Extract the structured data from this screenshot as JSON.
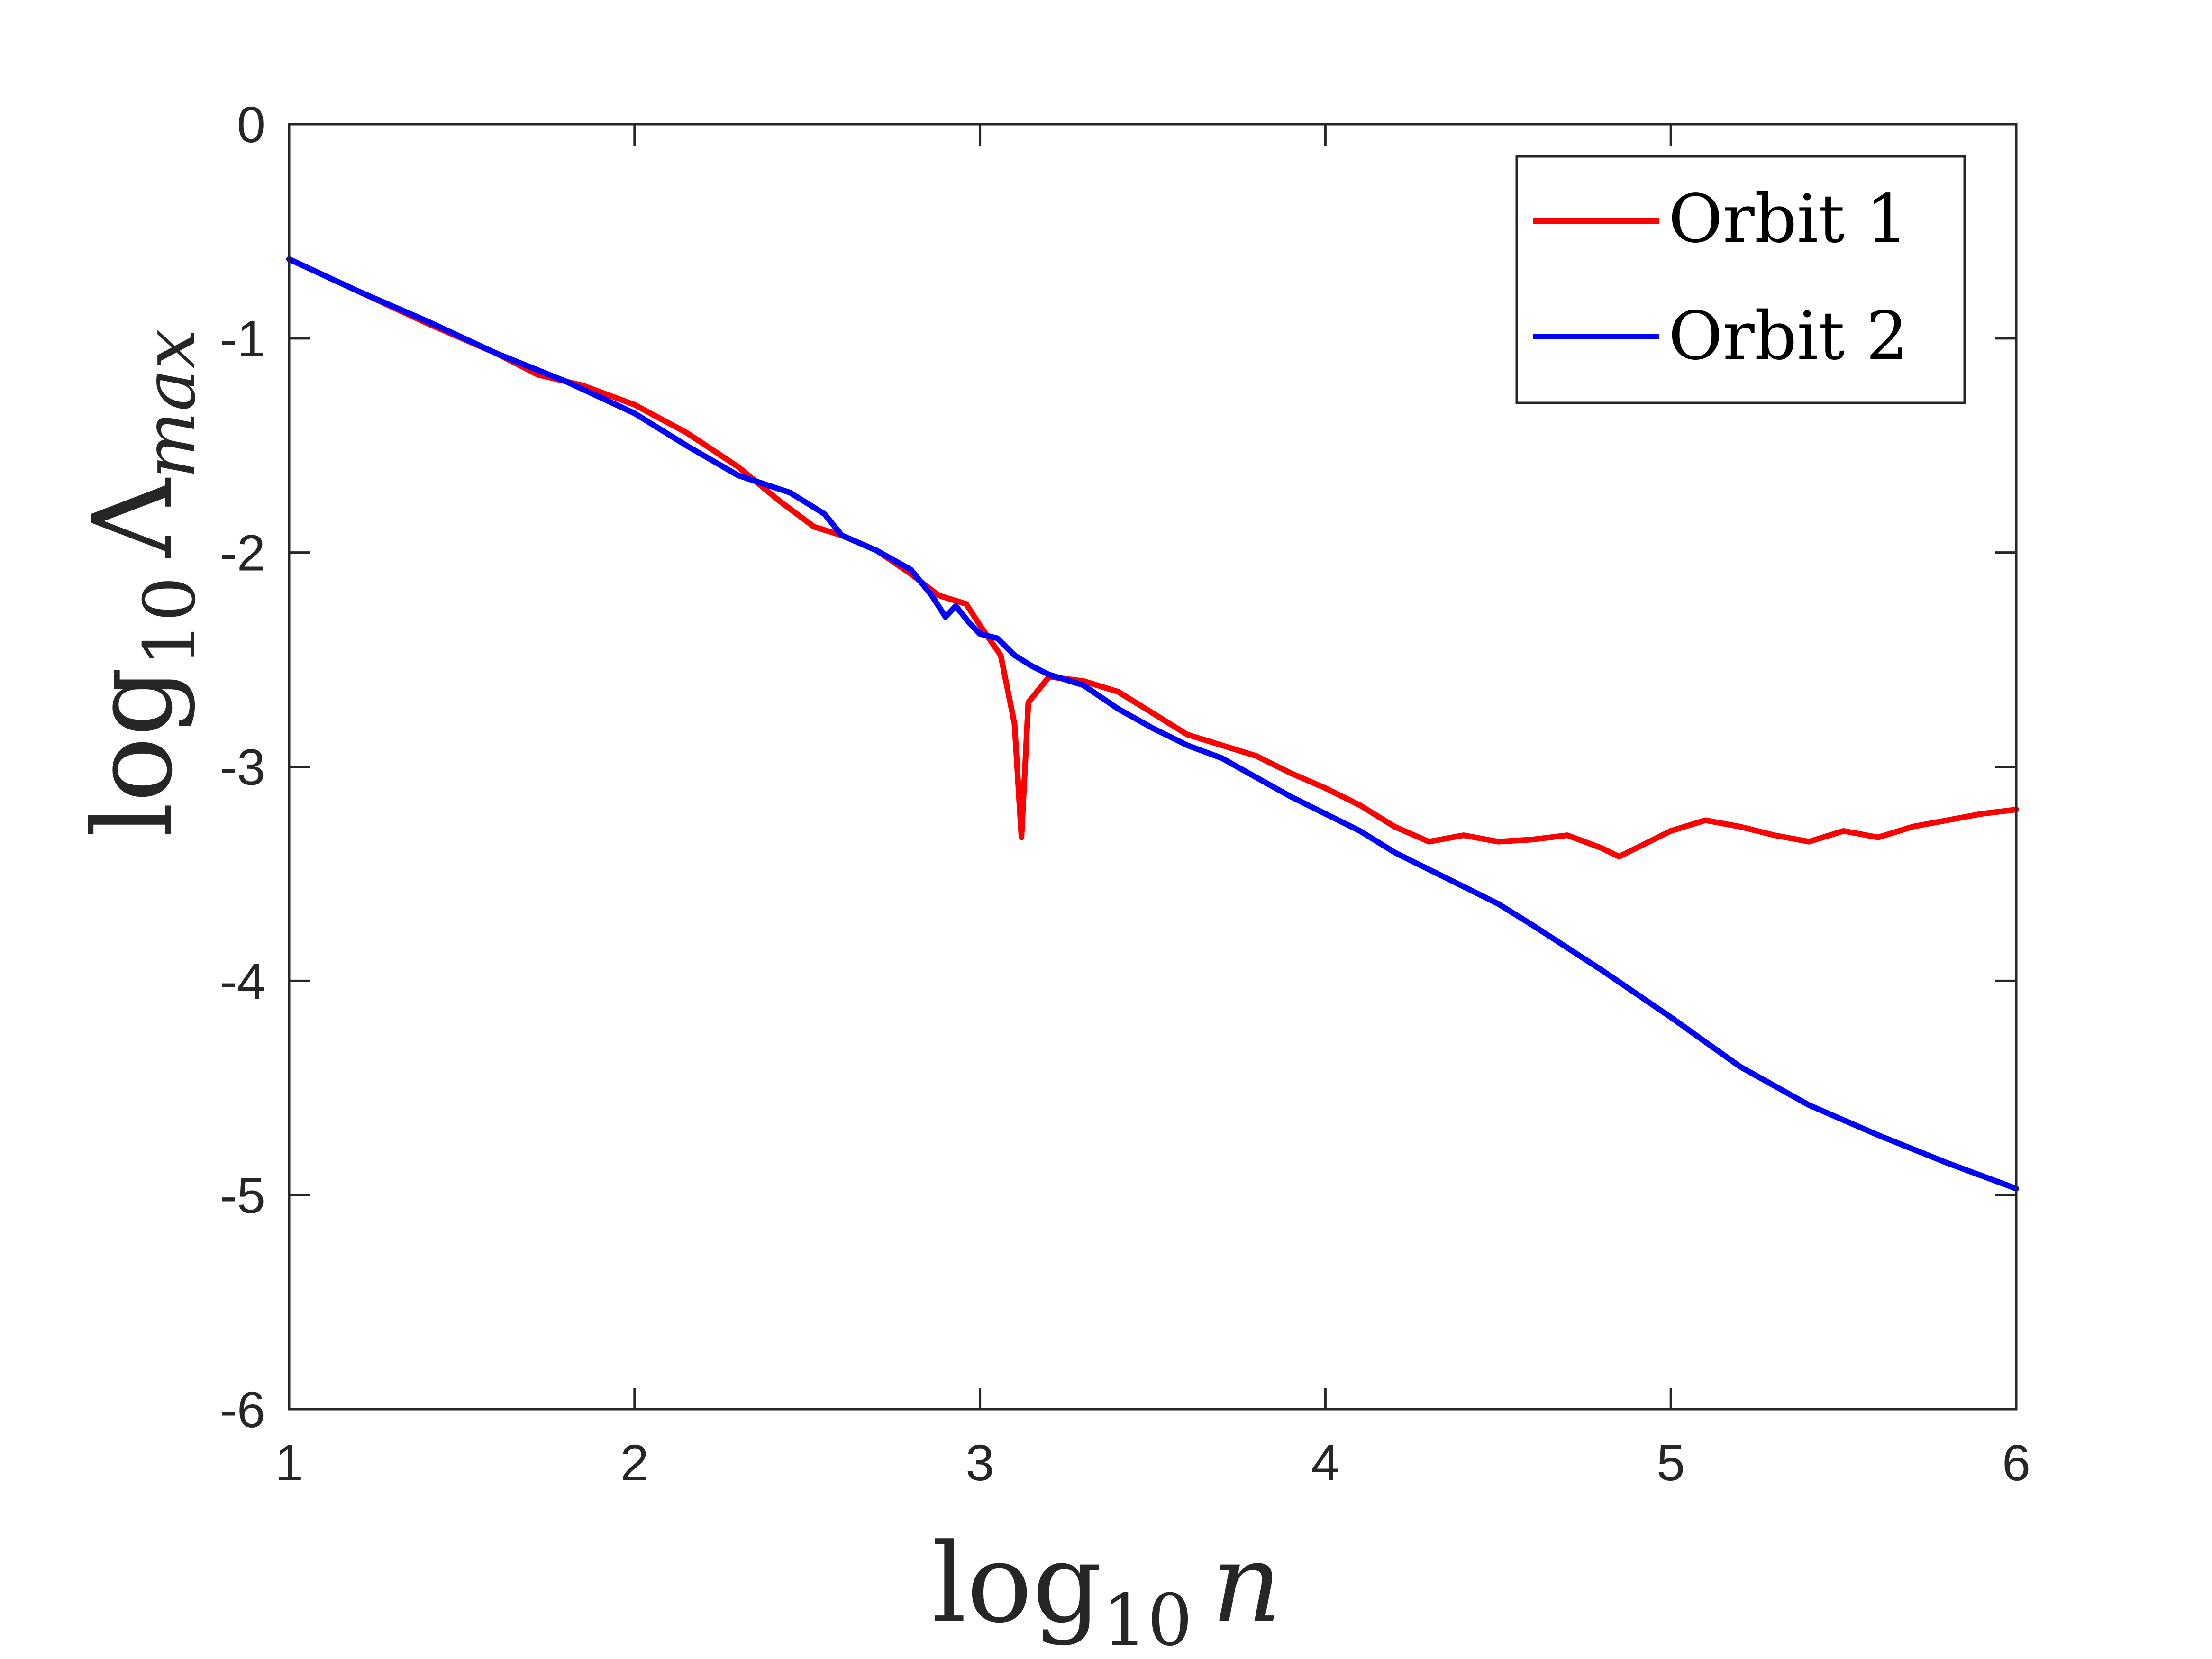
{
  "chart_data": {
    "type": "line",
    "title": "",
    "xlabel": {
      "base": "log",
      "sub": "10",
      "var": "n"
    },
    "ylabel": {
      "base": "log",
      "sub": "10",
      "var": "Λ",
      "var_sub": "max"
    },
    "xlim": [
      1,
      6
    ],
    "ylim": [
      -6,
      0
    ],
    "xticks": [
      "1",
      "2",
      "3",
      "4",
      "5",
      "6"
    ],
    "yticks": [
      "0",
      "-1",
      "-2",
      "-3",
      "-4",
      "-5",
      "-6"
    ],
    "grid": false,
    "legend_position": "top-right",
    "series": [
      {
        "name": "Orbit 1",
        "color": "#ff0000",
        "x": [
          1.0,
          1.2,
          1.4,
          1.6,
          1.72,
          1.85,
          2.0,
          2.15,
          2.3,
          2.42,
          2.52,
          2.6,
          2.7,
          2.8,
          2.88,
          2.96,
          3.0,
          3.06,
          3.1,
          3.12,
          3.14,
          3.2,
          3.3,
          3.4,
          3.5,
          3.6,
          3.7,
          3.8,
          3.9,
          4.0,
          4.1,
          4.2,
          4.3,
          4.4,
          4.5,
          4.6,
          4.7,
          4.8,
          4.85,
          4.9,
          5.0,
          5.1,
          5.2,
          5.3,
          5.4,
          5.5,
          5.6,
          5.7,
          5.8,
          5.9,
          6.0
        ],
        "y": [
          -0.63,
          -0.78,
          -0.93,
          -1.07,
          -1.17,
          -1.22,
          -1.31,
          -1.44,
          -1.6,
          -1.76,
          -1.88,
          -1.92,
          -1.99,
          -2.1,
          -2.2,
          -2.24,
          -2.34,
          -2.48,
          -2.8,
          -3.33,
          -2.7,
          -2.58,
          -2.6,
          -2.65,
          -2.75,
          -2.85,
          -2.9,
          -2.95,
          -3.03,
          -3.1,
          -3.18,
          -3.28,
          -3.35,
          -3.32,
          -3.35,
          -3.34,
          -3.32,
          -3.38,
          -3.42,
          -3.38,
          -3.3,
          -3.25,
          -3.28,
          -3.32,
          -3.35,
          -3.3,
          -3.33,
          -3.28,
          -3.25,
          -3.22,
          -3.2
        ]
      },
      {
        "name": "Orbit 2",
        "color": "#0000ff",
        "x": [
          1.0,
          1.2,
          1.4,
          1.6,
          1.8,
          2.0,
          2.15,
          2.3,
          2.45,
          2.55,
          2.6,
          2.7,
          2.8,
          2.86,
          2.9,
          2.93,
          2.97,
          3.0,
          3.05,
          3.1,
          3.15,
          3.2,
          3.3,
          3.4,
          3.5,
          3.6,
          3.7,
          3.8,
          3.9,
          4.0,
          4.1,
          4.2,
          4.3,
          4.4,
          4.5,
          4.6,
          4.8,
          5.0,
          5.2,
          5.4,
          5.6,
          5.8,
          6.0
        ],
        "y": [
          -0.63,
          -0.78,
          -0.92,
          -1.07,
          -1.2,
          -1.35,
          -1.5,
          -1.64,
          -1.72,
          -1.82,
          -1.92,
          -1.99,
          -2.08,
          -2.2,
          -2.3,
          -2.25,
          -2.33,
          -2.38,
          -2.4,
          -2.48,
          -2.53,
          -2.57,
          -2.62,
          -2.73,
          -2.82,
          -2.9,
          -2.96,
          -3.05,
          -3.14,
          -3.22,
          -3.3,
          -3.4,
          -3.48,
          -3.56,
          -3.64,
          -3.74,
          -3.95,
          -4.17,
          -4.4,
          -4.58,
          -4.72,
          -4.85,
          -4.97
        ]
      }
    ]
  }
}
